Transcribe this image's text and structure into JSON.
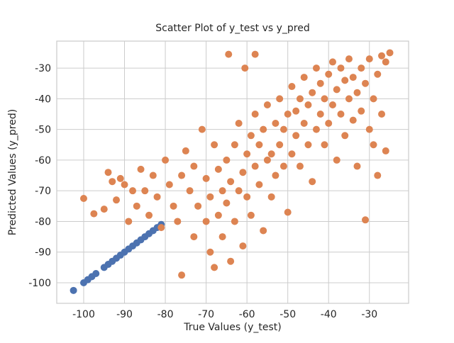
{
  "chart_data": {
    "type": "scatter",
    "title": "Scatter Plot of y_test vs y_pred",
    "x_label": "True Values (y_test)",
    "y_label": "Predicted Values (y_pred)",
    "xlim": [
      -106.6,
      -20.4
    ],
    "ylim": [
      -106.7,
      -21.2
    ],
    "xticks": [
      -100,
      -90,
      -80,
      -70,
      -60,
      -50,
      -40,
      -30
    ],
    "yticks": [
      -100,
      -90,
      -80,
      -70,
      -60,
      -50,
      -40,
      -30
    ],
    "grid": true,
    "series": [
      {
        "color": "#4c72b0",
        "x": [
          -102.5,
          -100,
          -99,
          -98,
          -97,
          -95,
          -94,
          -93,
          -92,
          -91,
          -90,
          -89,
          -88,
          -87,
          -86,
          -85,
          -84,
          -83,
          -82,
          -81
        ],
        "values": [
          -102.5,
          -100,
          -99,
          -98,
          -97,
          -95,
          -94,
          -93,
          -92,
          -91,
          -90,
          -89,
          -88,
          -87,
          -86,
          -85,
          -84,
          -83,
          -82,
          -81
        ]
      },
      {
        "color": "#dd8452",
        "x": [
          -100,
          -97.5,
          -95,
          -94,
          -93,
          -92,
          -91,
          -90,
          -89,
          -88,
          -87,
          -86,
          -85,
          -84,
          -83,
          -82,
          -81,
          -80,
          -79,
          -78,
          -77,
          -76,
          -76,
          -75,
          -74,
          -73,
          -73,
          -72,
          -71,
          -70,
          -70,
          -69,
          -69,
          -68,
          -68,
          -67,
          -67,
          -66,
          -66,
          -65,
          -65,
          -64,
          -64,
          -63,
          -63,
          -62,
          -62,
          -61,
          -61,
          -60,
          -60,
          -59,
          -59,
          -58,
          -58,
          -57,
          -57,
          -56,
          -56,
          -55,
          -55,
          -54,
          -54,
          -53,
          -53,
          -52,
          -52,
          -51,
          -51,
          -50,
          -50,
          -49,
          -49,
          -48,
          -48,
          -47,
          -47,
          -46,
          -46,
          -45,
          -45,
          -44,
          -44,
          -43,
          -43,
          -42,
          -42,
          -41,
          -41,
          -40,
          -40,
          -39,
          -39,
          -38,
          -38,
          -37,
          -37,
          -36,
          -36,
          -35,
          -35,
          -34,
          -34,
          -33,
          -33,
          -32,
          -32,
          -31,
          -31,
          -30,
          -30,
          -29,
          -29,
          -28,
          -28,
          -27,
          -27,
          -26,
          -26,
          -25,
          -64.5,
          -60.5,
          -58
        ],
        "values": [
          -72.5,
          -77.5,
          -76,
          -64,
          -67,
          -73,
          -66,
          -68,
          -80,
          -70,
          -75,
          -63,
          -70,
          -78,
          -65,
          -72,
          -82,
          -60,
          -68,
          -75,
          -80,
          -97.5,
          -65,
          -57,
          -70,
          -85,
          -62,
          -75,
          -50,
          -66,
          -80,
          -90,
          -72,
          -55,
          -95,
          -63,
          -78,
          -70,
          -85,
          -60,
          -74,
          -93,
          -67,
          -55,
          -80,
          -70,
          -48,
          -64,
          -88,
          -58,
          -72,
          -52,
          -78,
          -62,
          -45,
          -68,
          -55,
          -50,
          -83,
          -60,
          -42,
          -58,
          -72,
          -48,
          -65,
          -55,
          -40,
          -62,
          -50,
          -45,
          -77,
          -58,
          -36,
          -52,
          -44,
          -40,
          -62,
          -48,
          -33,
          -55,
          -42,
          -38,
          -67,
          -50,
          -30,
          -45,
          -35,
          -40,
          -55,
          -32,
          -48,
          -28,
          -42,
          -37,
          -60,
          -45,
          -30,
          -34,
          -52,
          -40,
          -27,
          -47,
          -33,
          -38,
          -62,
          -30,
          -44,
          -35,
          -79.5,
          -27,
          -50,
          -40,
          -55,
          -32,
          -65,
          -26,
          -45,
          -28,
          -57,
          -25,
          -25.5,
          -30,
          -25.5
        ]
      }
    ]
  }
}
